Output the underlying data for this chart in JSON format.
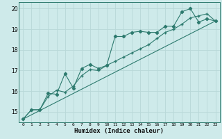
{
  "xlabel": "Humidex (Indice chaleur)",
  "bg_color": "#ceeaea",
  "grid_color": "#b8d8d8",
  "line_color": "#2d7a6e",
  "xlim": [
    -0.5,
    23.5
  ],
  "ylim": [
    14.5,
    20.3
  ],
  "xticks": [
    0,
    1,
    2,
    3,
    4,
    5,
    6,
    7,
    8,
    9,
    10,
    11,
    12,
    13,
    14,
    15,
    16,
    17,
    18,
    19,
    20,
    21,
    22,
    23
  ],
  "yticks": [
    15,
    16,
    17,
    18,
    19,
    20
  ],
  "series1_x": [
    0,
    1,
    2,
    3,
    4,
    5,
    6,
    7,
    8,
    9,
    10,
    11,
    12,
    13,
    14,
    15,
    16,
    17,
    18,
    19,
    20,
    21,
    22,
    23
  ],
  "series1_y": [
    14.65,
    15.1,
    15.1,
    15.9,
    15.85,
    16.85,
    16.15,
    17.1,
    17.3,
    17.1,
    17.25,
    18.65,
    18.65,
    18.85,
    18.9,
    18.85,
    18.85,
    19.15,
    19.15,
    19.85,
    20.0,
    19.35,
    19.5,
    19.4
  ],
  "series2_x": [
    0,
    1,
    2,
    3,
    4,
    5,
    6,
    7,
    8,
    9,
    10,
    11,
    12,
    13,
    14,
    15,
    16,
    17,
    18,
    19,
    20,
    21,
    22,
    23
  ],
  "series2_y": [
    14.65,
    15.1,
    15.1,
    15.75,
    16.05,
    15.95,
    16.25,
    16.75,
    17.05,
    17.0,
    17.25,
    17.45,
    17.65,
    17.85,
    18.05,
    18.25,
    18.55,
    18.85,
    19.0,
    19.25,
    19.55,
    19.65,
    19.75,
    19.4
  ],
  "series3_x": [
    0,
    23
  ],
  "series3_y": [
    14.65,
    19.4
  ]
}
